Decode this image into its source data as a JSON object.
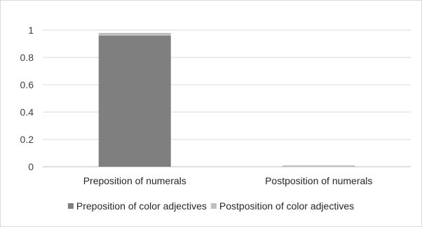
{
  "chart_data": {
    "type": "bar",
    "stacked": true,
    "categories": [
      "Preposition of numerals",
      "Postposition of numerals"
    ],
    "series": [
      {
        "name": "Preposition of color adjectives",
        "values": [
          0.96,
          0.0
        ],
        "color": "#7f7f7f"
      },
      {
        "name": "Postposition of color adjectives",
        "values": [
          0.02,
          0.01
        ],
        "color": "#bfbfbf"
      }
    ],
    "ylim": [
      0,
      1
    ],
    "yticks": [
      0,
      0.2,
      0.4,
      0.6,
      0.8,
      1
    ],
    "ytick_labels": [
      "0",
      "0.2",
      "0.4",
      "0.6",
      "0.8",
      "1"
    ],
    "grid": true,
    "legend": "bottom",
    "title": "",
    "xlabel": "",
    "ylabel": ""
  }
}
